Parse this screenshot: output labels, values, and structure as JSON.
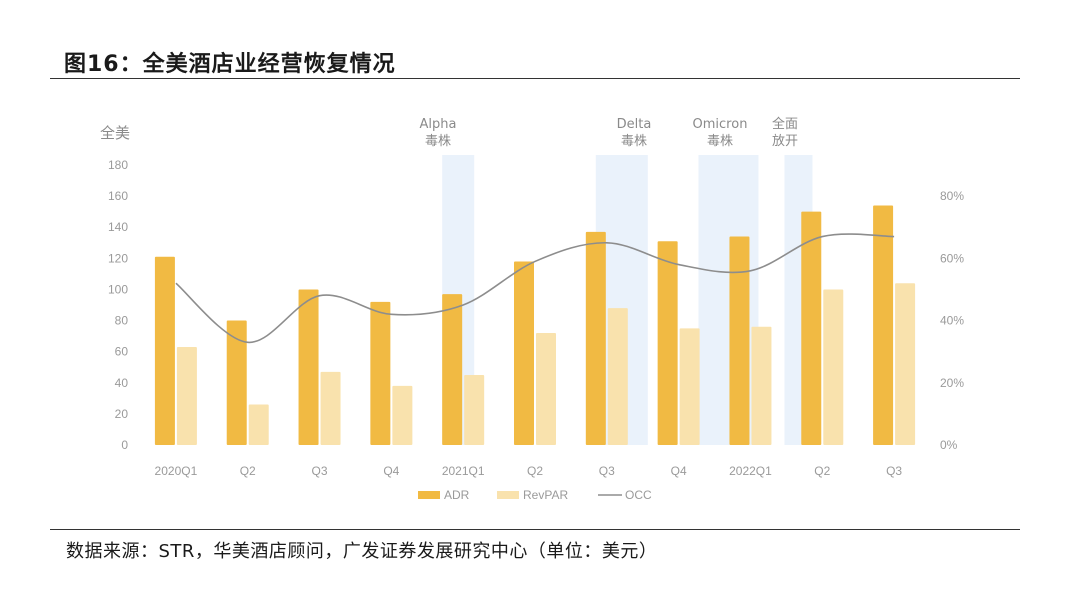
{
  "figure": {
    "title": "图16：全美酒店业经营恢复情况",
    "source": "数据来源：STR，华美酒店顾问，广发证券发展研究中心（单位：美元）"
  },
  "colors": {
    "adr": "#f1ba43",
    "revpar": "#f9e2ad",
    "occ": "#8d8d8d",
    "band": "#eaf2fb",
    "axis_text": "#9a9a9a"
  },
  "chart_data": {
    "type": "bar",
    "left_axis_label": "全美",
    "categories": [
      "2020Q1",
      "Q2",
      "Q3",
      "Q4",
      "2021Q1",
      "Q2",
      "Q3",
      "Q4",
      "2022Q1",
      "Q2",
      "Q3"
    ],
    "series": [
      {
        "name": "ADR",
        "type": "bar",
        "axis": "left",
        "values": [
          121,
          80,
          100,
          92,
          97,
          118,
          137,
          131,
          134,
          150,
          154
        ]
      },
      {
        "name": "RevPAR",
        "type": "bar",
        "axis": "left",
        "values": [
          63,
          26,
          47,
          38,
          45,
          72,
          88,
          75,
          76,
          100,
          104
        ]
      },
      {
        "name": "OCC",
        "type": "line",
        "axis": "right",
        "values": [
          52,
          33,
          48,
          42,
          45,
          59,
          65,
          58,
          56,
          67,
          67
        ]
      }
    ],
    "ylim": [
      0,
      180
    ],
    "yticks": [
      0,
      20,
      40,
      60,
      80,
      100,
      120,
      140,
      160,
      180
    ],
    "y2lim": [
      0,
      90
    ],
    "y2ticks": [
      0,
      20,
      40,
      60,
      80
    ],
    "y2tick_labels": [
      "0%",
      "20%",
      "40%",
      "60%",
      "80%"
    ],
    "annotations": [
      {
        "line1": "Alpha",
        "line2": "毒株",
        "category": "2021Q1"
      },
      {
        "line1": "Delta",
        "line2": "毒株",
        "category": "Q3"
      },
      {
        "line1": "Omicron",
        "line2": "毒株",
        "category": "2022Q1"
      },
      {
        "line1": "全面",
        "line2": "放开",
        "category": "2022Q1"
      }
    ],
    "legend": [
      "ADR",
      "RevPAR",
      "OCC"
    ],
    "legend_position": "bottom-center"
  }
}
